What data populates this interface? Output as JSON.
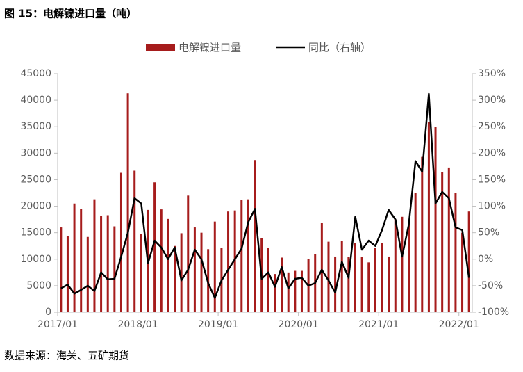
{
  "chart_data": {
    "type": "bar_line",
    "title": "图 15：电解镍进口量（吨）",
    "source": "数据来源：海关、五矿期货",
    "categories": [
      "2017/01",
      null,
      null,
      null,
      null,
      null,
      null,
      null,
      null,
      null,
      null,
      null,
      "2018/01",
      null,
      null,
      null,
      null,
      null,
      null,
      null,
      null,
      null,
      null,
      null,
      "2019/01",
      null,
      null,
      null,
      null,
      null,
      null,
      null,
      null,
      null,
      null,
      null,
      "2020/01",
      null,
      null,
      null,
      null,
      null,
      null,
      null,
      null,
      null,
      null,
      null,
      "2021/01",
      null,
      null,
      null,
      null,
      null,
      null,
      null,
      null,
      null,
      null,
      null,
      "2022/01",
      null
    ],
    "series": [
      {
        "name": "电解镍进口量",
        "color": "#a61c1c",
        "kind": "bar",
        "values": [
          16000,
          14300,
          20500,
          19500,
          14200,
          21300,
          18200,
          18300,
          16200,
          26300,
          41300,
          26700,
          14700,
          19300,
          24500,
          19400,
          17600,
          12500,
          14900,
          22000,
          16000,
          15000,
          11900,
          17100,
          12200,
          19000,
          19200,
          21200,
          21300,
          28700,
          14000,
          12200,
          7200,
          10300,
          7500,
          7800,
          7800,
          10000,
          11000,
          16800,
          13300,
          10500,
          13500,
          10400,
          13100,
          10400,
          9400,
          12200,
          13000,
          10500,
          17500,
          18000,
          17500,
          22500,
          29300,
          35900,
          34900,
          26500,
          27300,
          22500,
          15000,
          19000
        ]
      },
      {
        "name": "同比（右轴）",
        "color": "#000000",
        "kind": "line",
        "axis": "y2",
        "values": [
          -55,
          -48,
          -65,
          -58,
          -50,
          -60,
          -25,
          -38,
          -37,
          5,
          50,
          115,
          105,
          -8,
          35,
          22,
          0,
          22,
          -40,
          -20,
          18,
          0,
          -45,
          -73,
          -40,
          -20,
          0,
          20,
          70,
          95,
          -37,
          -25,
          -52,
          -15,
          -55,
          -37,
          -35,
          -50,
          -45,
          -20,
          -40,
          -63,
          -5,
          -35,
          80,
          18,
          35,
          25,
          55,
          93,
          75,
          5,
          65,
          185,
          165,
          312,
          105,
          127,
          115,
          60,
          55,
          -35
        ]
      }
    ],
    "ylim": [
      0,
      45000
    ],
    "yticks": [
      0,
      5000,
      10000,
      15000,
      20000,
      25000,
      30000,
      35000,
      40000,
      45000
    ],
    "y2lim": [
      -100,
      350
    ],
    "y2ticks": [
      {
        "value": -100,
        "label": "-100%"
      },
      {
        "value": -50,
        "label": "-50%"
      },
      {
        "value": 0,
        "label": "0%"
      },
      {
        "value": 50,
        "label": "50%"
      },
      {
        "value": 100,
        "label": "100%"
      },
      {
        "value": 150,
        "label": "150%"
      },
      {
        "value": 200,
        "label": "200%"
      },
      {
        "value": 250,
        "label": "250%"
      },
      {
        "value": 300,
        "label": "300%"
      },
      {
        "value": 350,
        "label": "350%"
      }
    ],
    "legend": "top",
    "grid": false
  }
}
